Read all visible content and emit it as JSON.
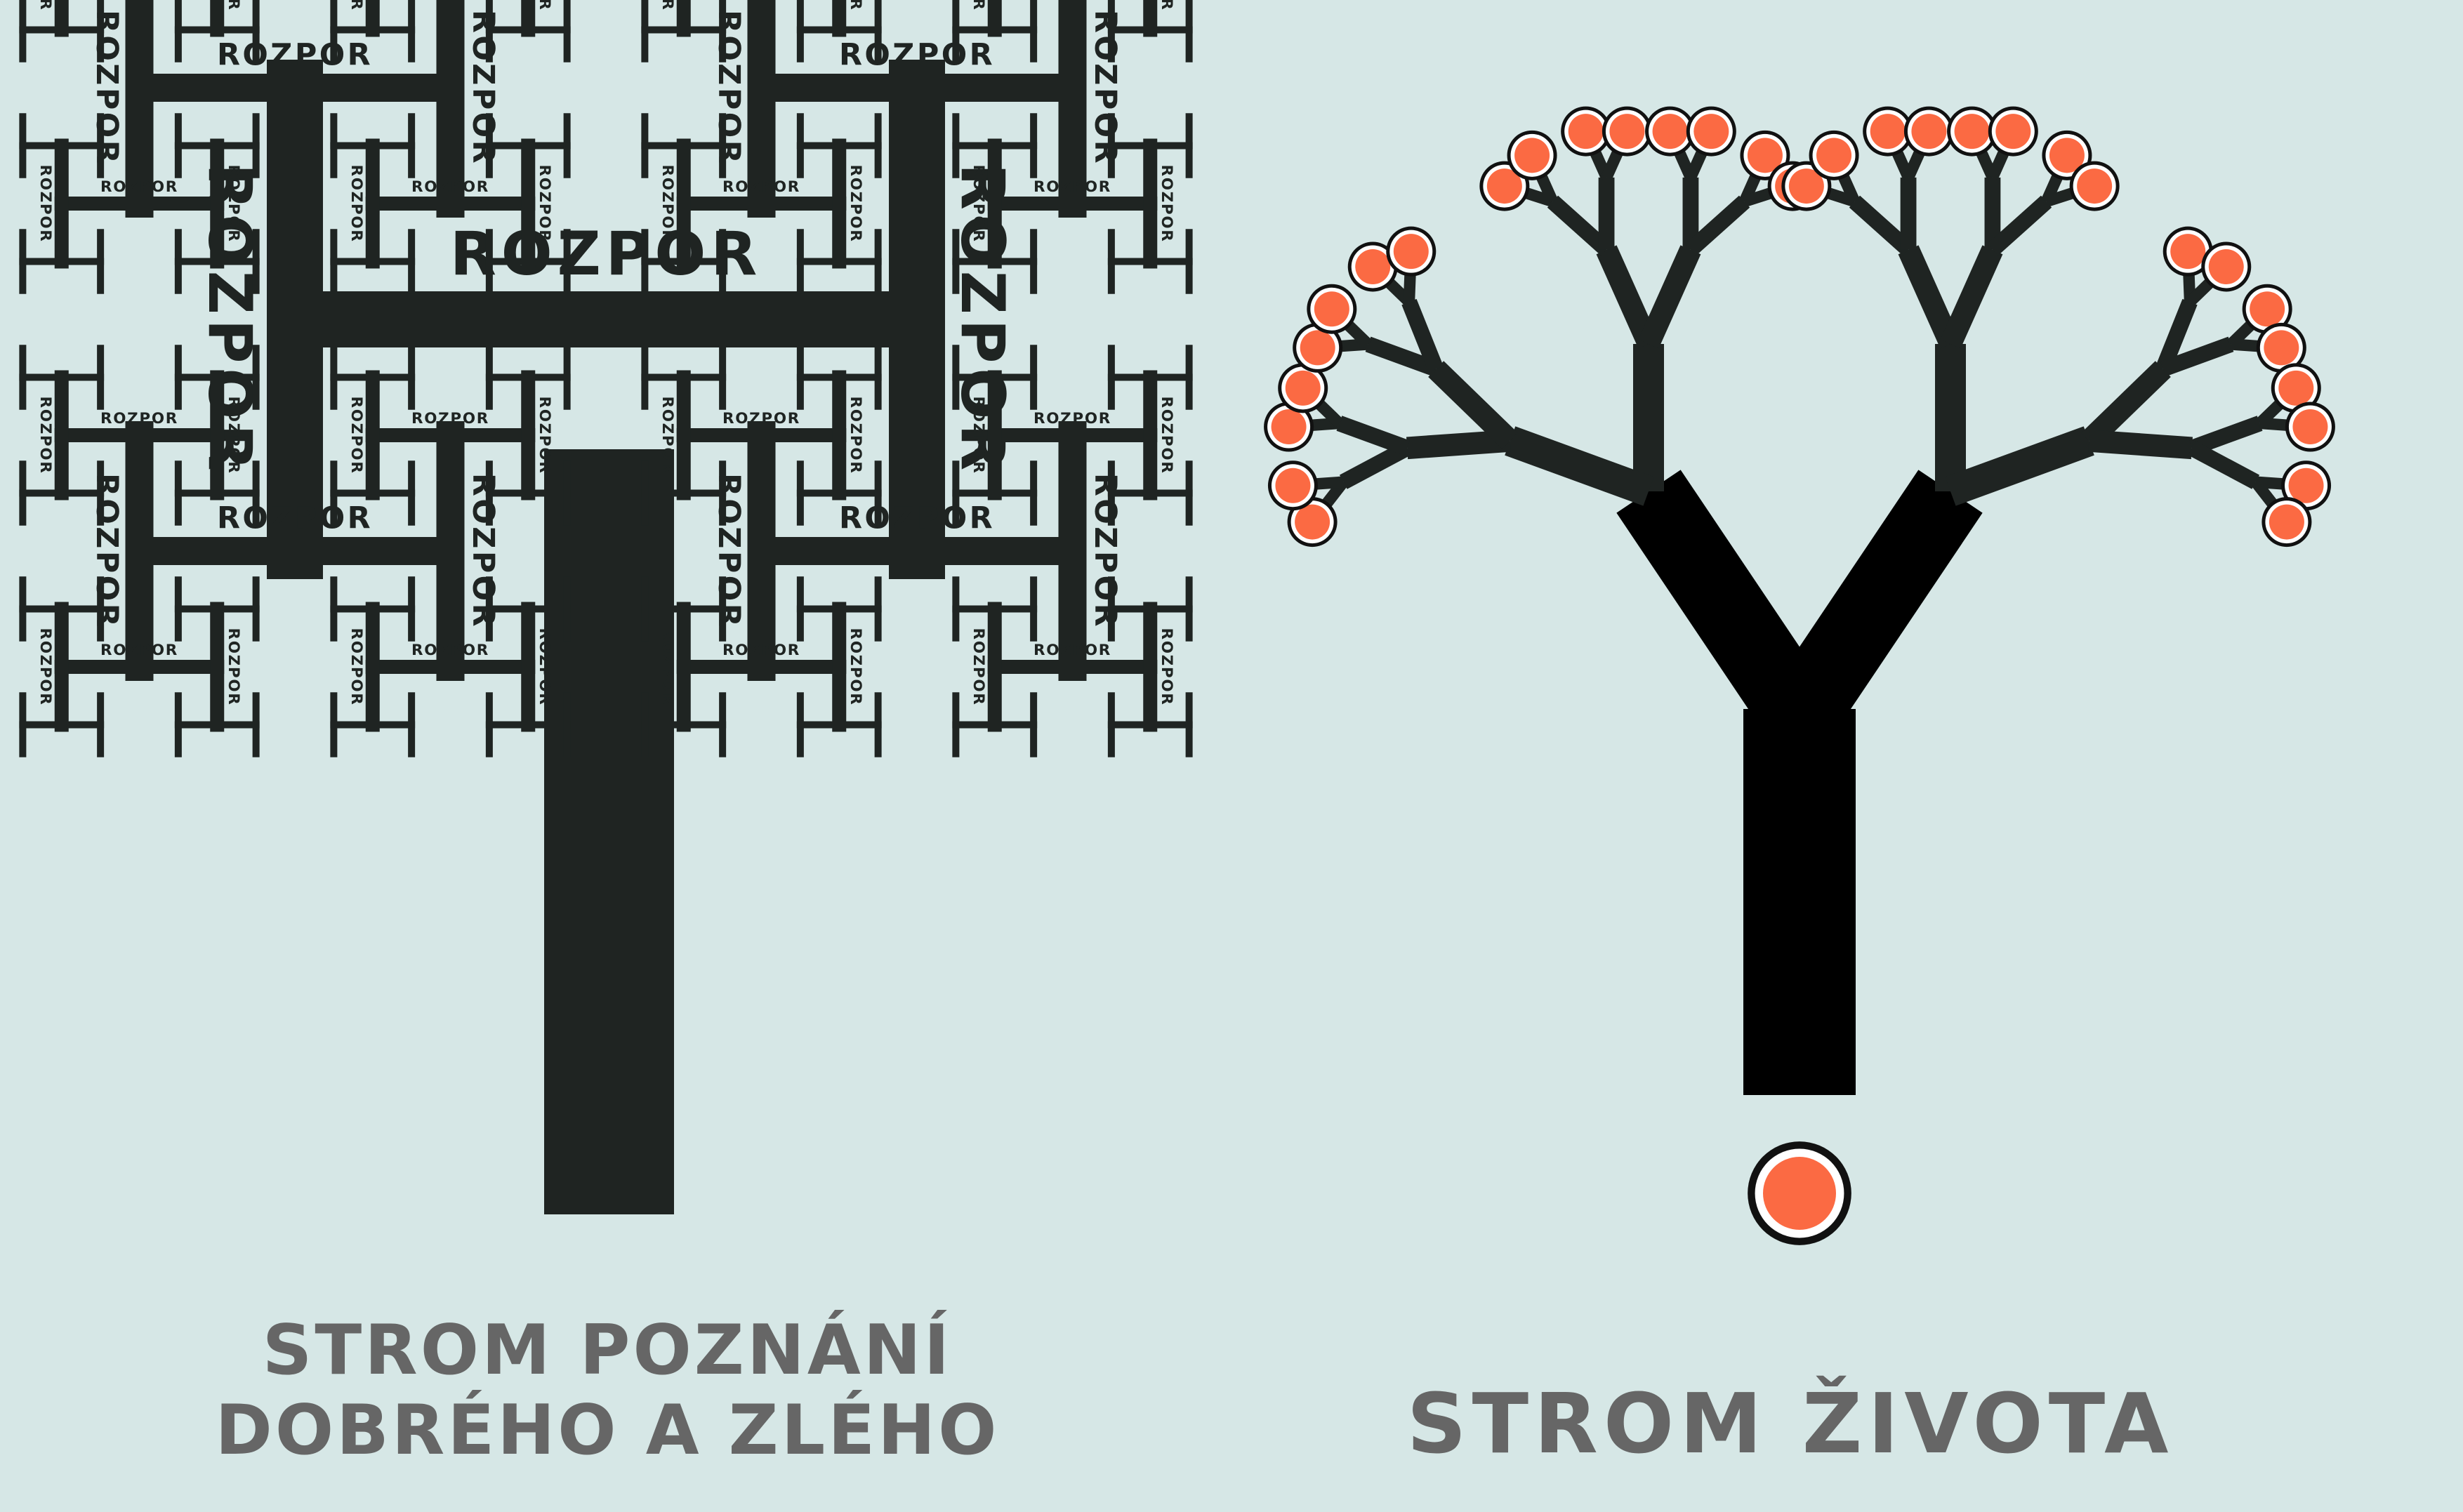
{
  "colors": {
    "background": "#d6e7e6",
    "tree": "#1f2422",
    "trunk": "#000000",
    "fruit": "#fb6a43",
    "fruit_ring": "#ffffff",
    "fruit_border": "#111111",
    "caption": "#666666"
  },
  "left_tree": {
    "word": "ROZPOR",
    "caption_line1": "STROM POZNÁNÍ",
    "caption_line2": "DOBRÉHO A ZLÉHO"
  },
  "right_tree": {
    "caption": "STROM ŽIVOTA"
  }
}
